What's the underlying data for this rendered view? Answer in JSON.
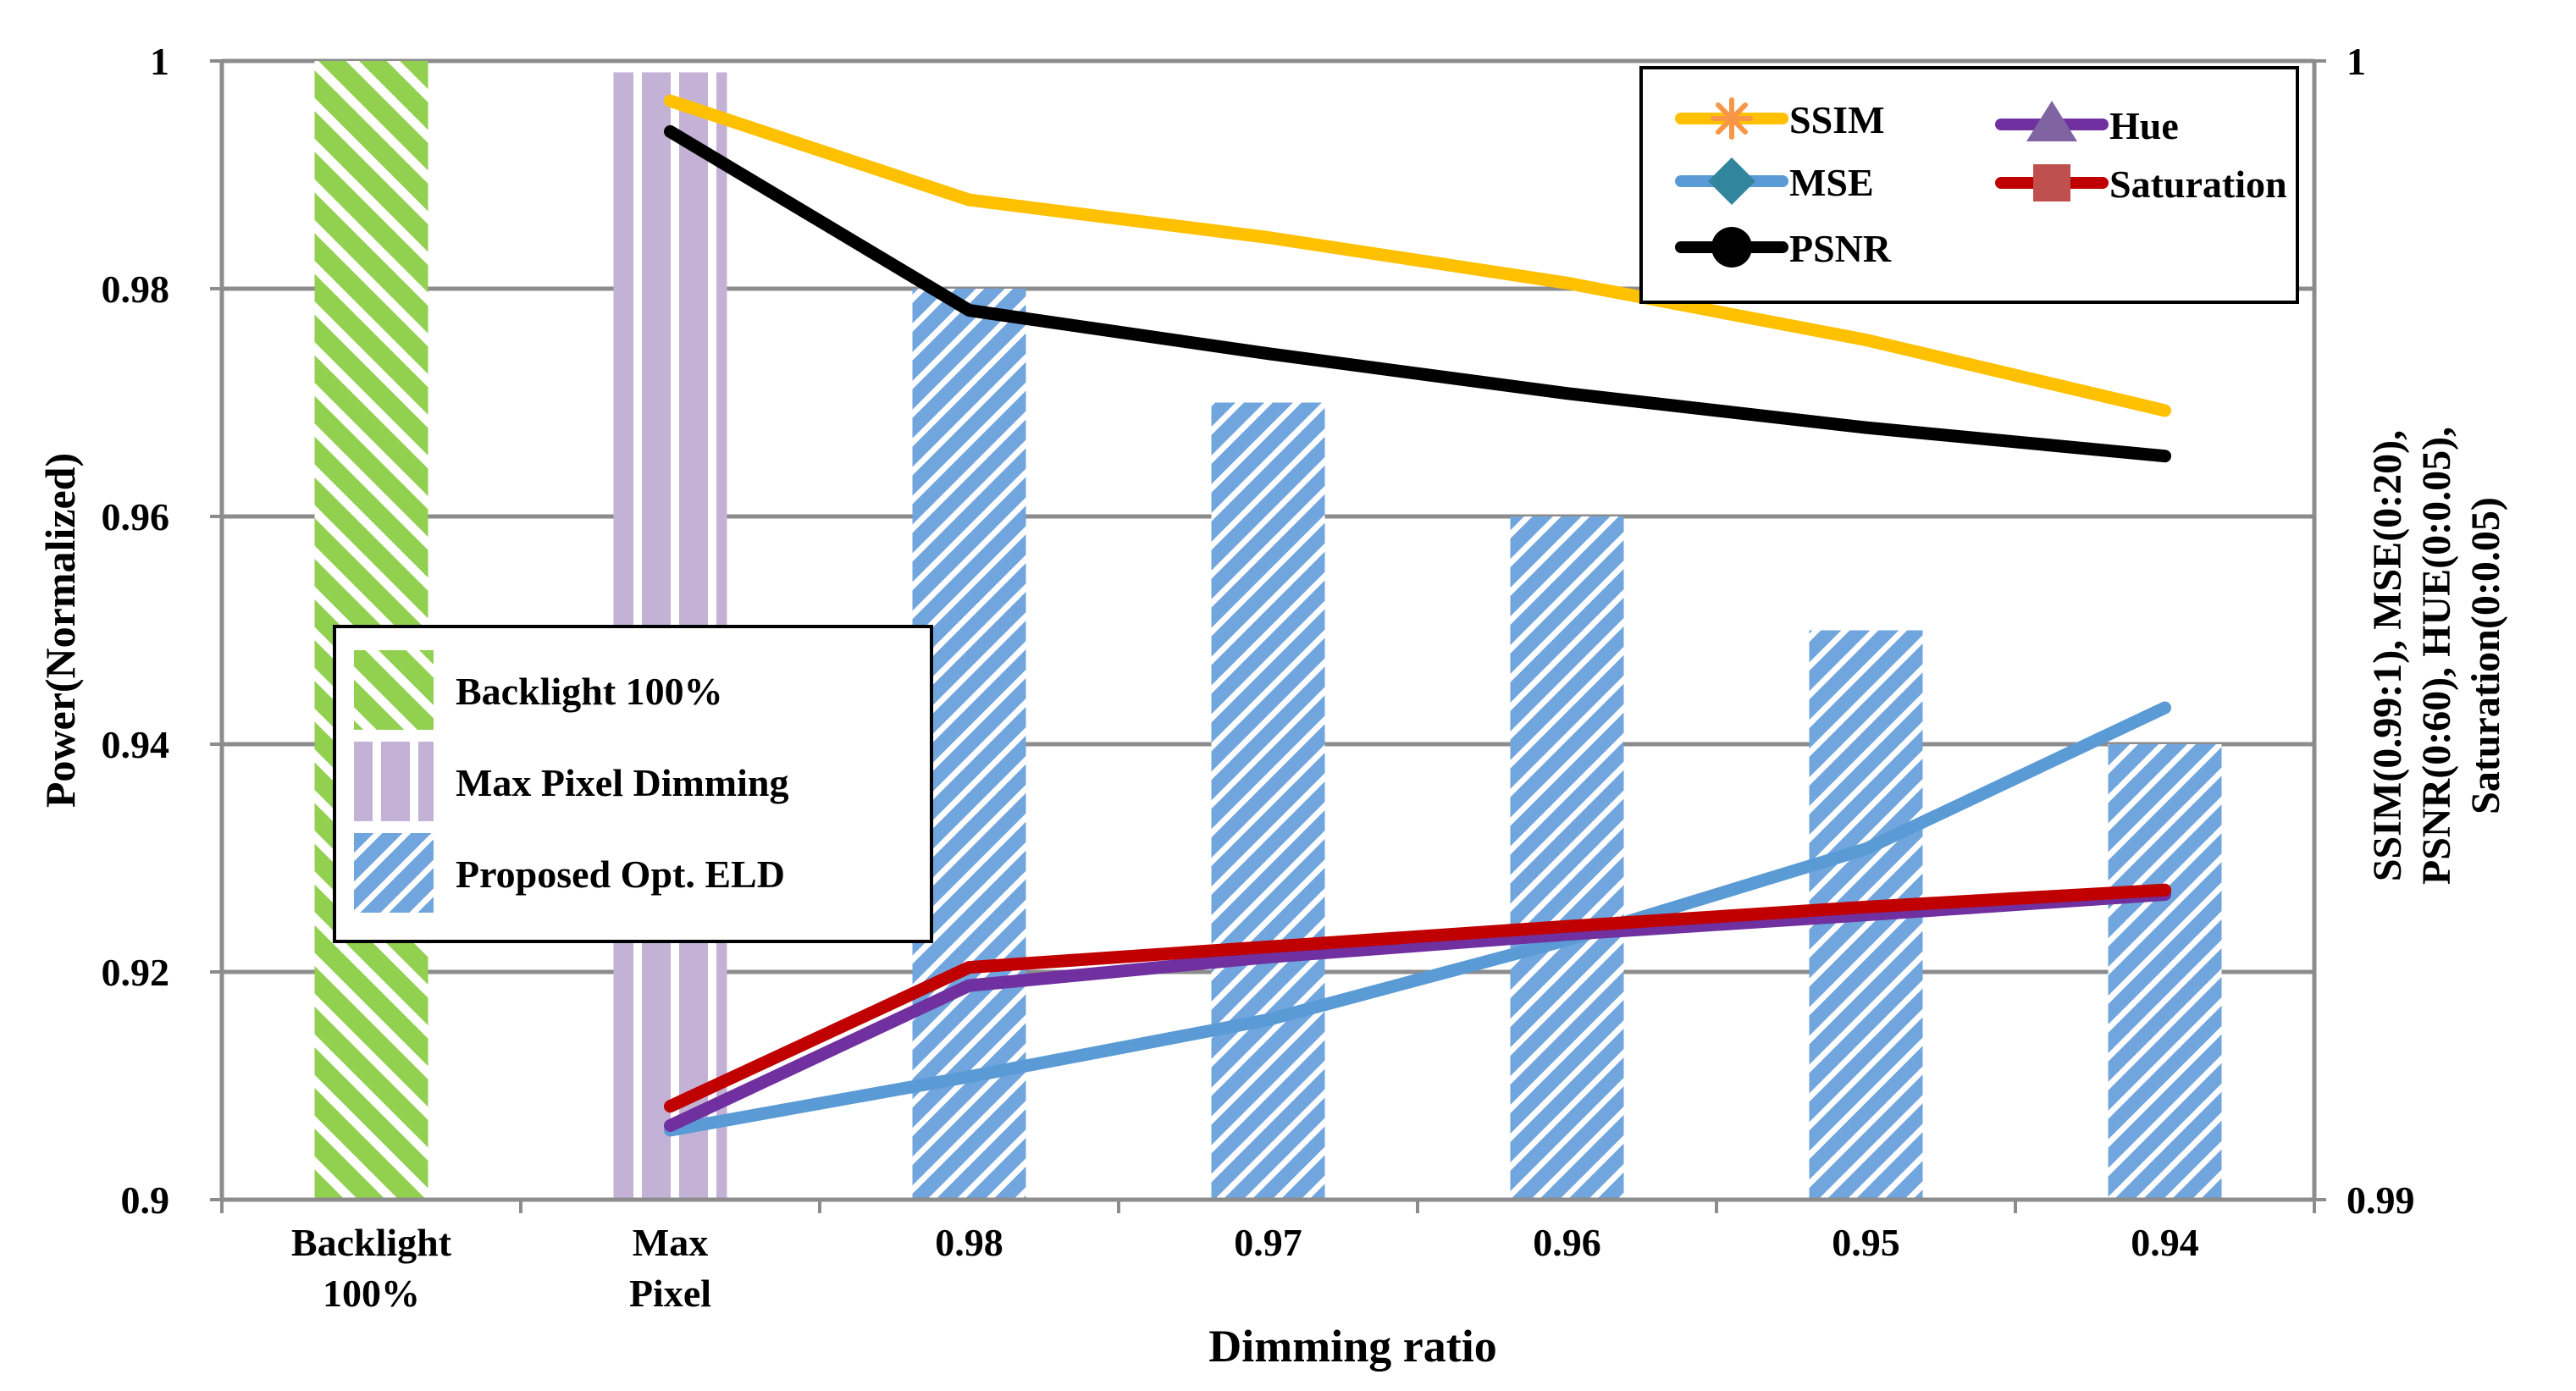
{
  "chart_data": {
    "type": "bar",
    "xlabel": "Dimming ratio",
    "ylabel": "Power(Normalized)",
    "y2label_lines": [
      "SSIM(0.99:1), MSE(0:20),",
      "PSNR(0:60), HUE(0:0.05),",
      "Saturation(0:0.05)"
    ],
    "ylim": [
      0.9,
      1
    ],
    "yticks": [
      "0.9",
      "0.92",
      "0.94",
      "0.96",
      "0.98",
      "1"
    ],
    "y2lim": [
      0.99,
      1
    ],
    "y2ticks": [
      "0.99",
      "1"
    ],
    "grid": true,
    "categories": [
      {
        "lines": [
          "Backlight",
          "100%"
        ]
      },
      {
        "lines": [
          "Max",
          "Pixel"
        ]
      },
      {
        "lines": [
          "0.98"
        ]
      },
      {
        "lines": [
          "0.97"
        ]
      },
      {
        "lines": [
          "0.96"
        ]
      },
      {
        "lines": [
          "0.95"
        ]
      },
      {
        "lines": [
          "0.94"
        ]
      }
    ],
    "bars": [
      {
        "name": "Backlight 100%",
        "style": "green-diagonal",
        "color": "#92d050",
        "values": [
          1.0,
          null,
          null,
          null,
          null,
          null,
          null
        ]
      },
      {
        "name": "Max Pixel Dimming",
        "style": "purple-vertical",
        "color": "#c4b1d6",
        "values": [
          null,
          0.999,
          null,
          null,
          null,
          null,
          null
        ]
      },
      {
        "name": "Proposed Opt. ELD",
        "style": "blue-diagonal",
        "color": "#71a5dd",
        "values": [
          null,
          null,
          0.98,
          0.97,
          0.96,
          0.95,
          0.94
        ]
      }
    ],
    "line_series": [
      {
        "name": "SSIM",
        "color": "#ffc000",
        "values": [
          null,
          0.9965,
          0.9878,
          0.9845,
          0.9805,
          0.9755,
          0.9693
        ]
      },
      {
        "name": "MSE",
        "color": "#5b9bd5",
        "values": [
          null,
          0.9061,
          0.9108,
          0.9158,
          0.9228,
          0.9308,
          0.9432
        ]
      },
      {
        "name": "PSNR",
        "color": "#000000",
        "values": [
          null,
          0.9938,
          0.9781,
          0.9743,
          0.9708,
          0.9678,
          0.9653
        ]
      },
      {
        "name": "Hue",
        "color": "#7030a0",
        "values": [
          null,
          0.9065,
          0.9188,
          0.9213,
          0.9233,
          0.925,
          0.9268
        ]
      },
      {
        "name": "Saturation",
        "color": "#c00000",
        "values": [
          null,
          0.9082,
          0.9204,
          0.9222,
          0.924,
          0.9257,
          0.9272
        ]
      }
    ],
    "legend_series": [
      {
        "name": "SSIM",
        "marker": "star",
        "color": "#f79646"
      },
      {
        "name": "Hue",
        "marker": "triangle",
        "color": "#8064a2"
      },
      {
        "name": "MSE",
        "marker": "diamond",
        "color": "#31859c"
      },
      {
        "name": "Saturation",
        "marker": "square",
        "color": "#c0504d"
      },
      {
        "name": "PSNR",
        "marker": "circle",
        "color": "#000000"
      }
    ],
    "legend_bars": [
      {
        "name": "Backlight 100%",
        "style": "green-diagonal"
      },
      {
        "name": "Max Pixel Dimming",
        "style": "purple-vertical"
      },
      {
        "name": "Proposed Opt. ELD",
        "style": "blue-diagonal"
      }
    ],
    "legend_series_position": "top-right",
    "legend_bars_position": "middle-left"
  }
}
